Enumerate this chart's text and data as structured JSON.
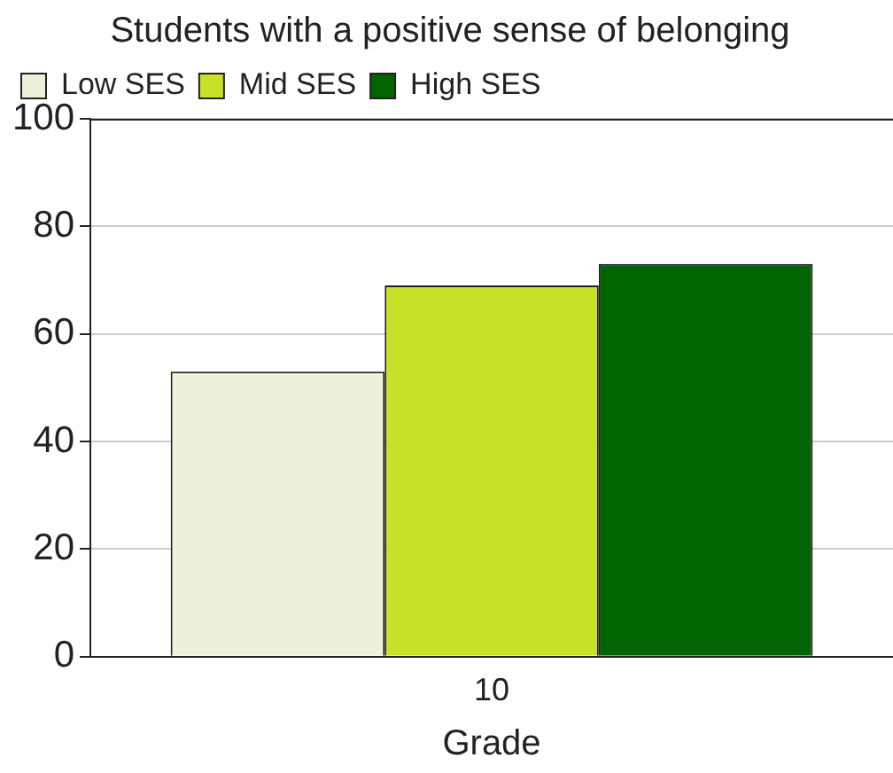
{
  "chart_data": {
    "type": "bar",
    "title": "Students with a positive sense of belonging",
    "xlabel": "Grade",
    "categories": [
      "10"
    ],
    "series": [
      {
        "name": "Low SES",
        "color": "#ecf2d8",
        "values": [
          53
        ]
      },
      {
        "name": "Mid SES",
        "color": "#c8e028",
        "values": [
          69
        ]
      },
      {
        "name": "High SES",
        "color": "#006400",
        "values": [
          73
        ]
      }
    ],
    "ylim": [
      0,
      100
    ],
    "yticks": [
      0,
      20,
      40,
      60,
      80,
      100
    ],
    "grid": "y",
    "legend": "top left"
  }
}
